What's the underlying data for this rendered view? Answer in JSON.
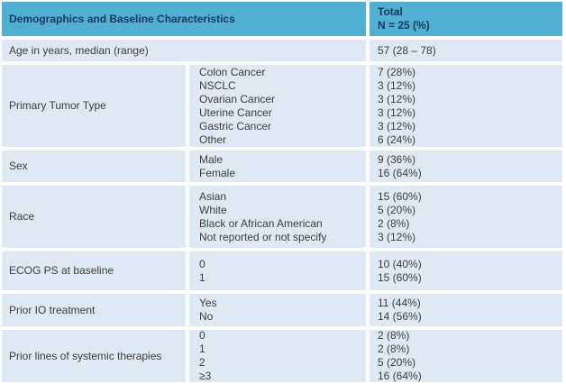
{
  "table": {
    "title": "Demographics and Baseline Characteristics",
    "colors": {
      "header_bg": "#51afd1",
      "header_text": "#17365d",
      "row_bg": "#dee9f3",
      "body_text": "#3d3d3d"
    },
    "header": {
      "characteristics_label": "Demographics and Baseline Characteristics",
      "total_line1": "Total",
      "total_line2": "N = 25 (%)"
    },
    "rows": [
      {
        "label": "Age in years, median (range)",
        "merged": true,
        "values": [
          "57 (28 – 78)"
        ]
      },
      {
        "label": "Primary Tumor Type",
        "sub": [
          "Colon Cancer",
          "NSCLC",
          "Ovarian Cancer",
          "Uterine Cancer",
          "Gastric Cancer",
          "Other"
        ],
        "values": [
          "7 (28%)",
          "3 (12%)",
          "3 (12%)",
          "3 (12%)",
          "3 (12%)",
          "6 (24%)"
        ]
      },
      {
        "label": "Sex",
        "sub": [
          "Male",
          "Female"
        ],
        "values": [
          "9 (36%)",
          "16 (64%)"
        ]
      },
      {
        "label": "Race",
        "sub": [
          "Asian",
          "White",
          "Black or African American",
          "Not reported or not specify"
        ],
        "values": [
          "15 (60%)",
          "5 (20%)",
          "2 (8%)",
          "3 (12%)"
        ]
      },
      {
        "label": "ECOG PS at baseline",
        "sub": [
          "0",
          "1"
        ],
        "values": [
          "10 (40%)",
          "15 (60%)"
        ]
      },
      {
        "label": "Prior IO treatment",
        "sub": [
          "Yes",
          "No"
        ],
        "values": [
          "11 (44%)",
          "14 (56%)"
        ]
      },
      {
        "label": "Prior lines of systemic therapies",
        "sub": [
          "0",
          "1",
          "2",
          "≥3"
        ],
        "values": [
          "2 (8%)",
          "2 (8%)",
          "5 (20%)",
          "16 (64%)"
        ]
      }
    ]
  }
}
